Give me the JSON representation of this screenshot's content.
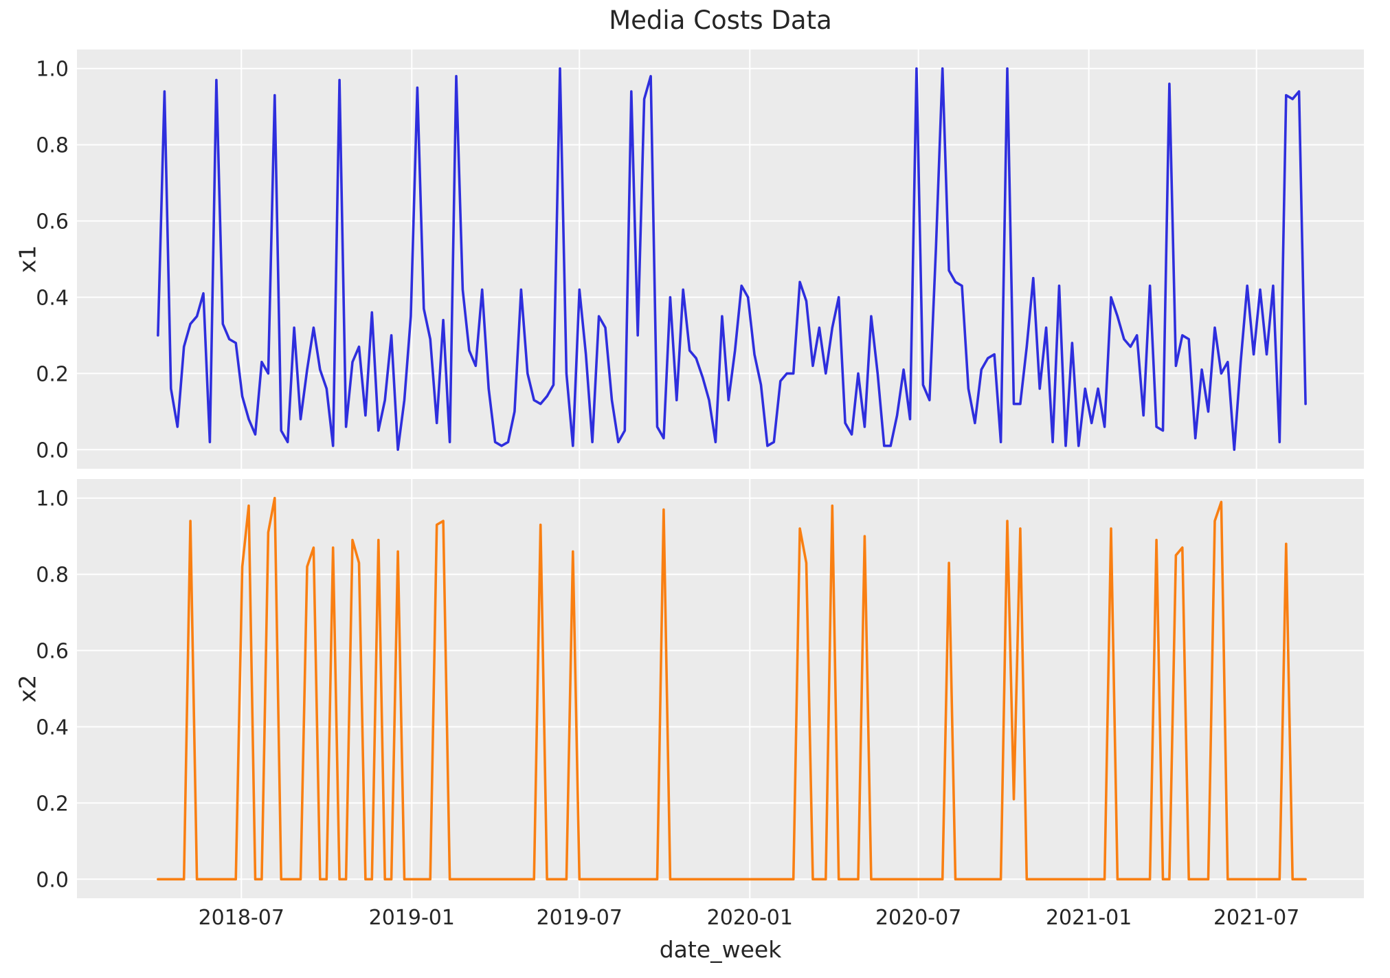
{
  "title": "Media Costs Data",
  "style": {
    "figure_bg": "#ffffff",
    "plot_bg": "#ebebeb",
    "grid_color": "#ffffff",
    "text_color": "#262626",
    "x1_color": "#2e2edd",
    "x2_color": "#f97f12"
  },
  "chart_data": {
    "type": "line",
    "title": "Media Costs Data",
    "xlabel": "date_week",
    "layout": "two-vertical-subplots-shared-x",
    "grid": true,
    "legend": "none",
    "x_start_date": "2018-04-02",
    "x_freq": "weekly",
    "n_points": 178,
    "ylim": [
      -0.05,
      1.05
    ],
    "yticks": [
      0.0,
      0.2,
      0.4,
      0.6,
      0.8,
      1.0
    ],
    "ytick_labels": [
      "0.0",
      "0.2",
      "0.4",
      "0.6",
      "0.8",
      "1.0"
    ],
    "x_ticks": [
      {
        "label": "2018-07",
        "week": 12.857
      },
      {
        "label": "2019-01",
        "week": 39.143
      },
      {
        "label": "2019-07",
        "week": 65.0
      },
      {
        "label": "2020-01",
        "week": 91.286
      },
      {
        "label": "2020-07",
        "week": 117.286
      },
      {
        "label": "2021-01",
        "week": 143.571
      },
      {
        "label": "2021-07",
        "week": 169.429
      }
    ],
    "series": [
      {
        "name": "x1",
        "color": "#2e2edd",
        "values": [
          0.3,
          0.94,
          0.16,
          0.06,
          0.27,
          0.33,
          0.35,
          0.41,
          0.02,
          0.97,
          0.33,
          0.29,
          0.28,
          0.14,
          0.08,
          0.04,
          0.23,
          0.2,
          0.93,
          0.05,
          0.02,
          0.32,
          0.08,
          0.21,
          0.32,
          0.21,
          0.16,
          0.01,
          0.97,
          0.06,
          0.23,
          0.27,
          0.09,
          0.36,
          0.05,
          0.13,
          0.3,
          0.0,
          0.13,
          0.35,
          0.95,
          0.37,
          0.29,
          0.07,
          0.34,
          0.02,
          0.98,
          0.42,
          0.26,
          0.22,
          0.42,
          0.16,
          0.02,
          0.01,
          0.02,
          0.1,
          0.42,
          0.2,
          0.13,
          0.12,
          0.14,
          0.17,
          1.0,
          0.2,
          0.01,
          0.42,
          0.25,
          0.02,
          0.35,
          0.32,
          0.13,
          0.02,
          0.05,
          0.94,
          0.3,
          0.92,
          0.98,
          0.06,
          0.03,
          0.4,
          0.13,
          0.42,
          0.26,
          0.24,
          0.19,
          0.13,
          0.02,
          0.35,
          0.13,
          0.26,
          0.43,
          0.4,
          0.25,
          0.17,
          0.01,
          0.02,
          0.18,
          0.2,
          0.2,
          0.44,
          0.39,
          0.22,
          0.32,
          0.2,
          0.32,
          0.4,
          0.07,
          0.04,
          0.2,
          0.06,
          0.35,
          0.2,
          0.01,
          0.01,
          0.09,
          0.21,
          0.08,
          1.0,
          0.17,
          0.13,
          0.53,
          1.0,
          0.47,
          0.44,
          0.43,
          0.16,
          0.07,
          0.21,
          0.24,
          0.25,
          0.02,
          1.0,
          0.12,
          0.12,
          0.27,
          0.45,
          0.16,
          0.32,
          0.02,
          0.43,
          0.01,
          0.28,
          0.01,
          0.16,
          0.07,
          0.16,
          0.06,
          0.4,
          0.35,
          0.29,
          0.27,
          0.3,
          0.09,
          0.43,
          0.06,
          0.05,
          0.96,
          0.22,
          0.3,
          0.29,
          0.03,
          0.21,
          0.1,
          0.32,
          0.2,
          0.23,
          0.0,
          0.23,
          0.43,
          0.25,
          0.42,
          0.25,
          0.43,
          0.02,
          0.93,
          0.92,
          0.94,
          0.12
        ]
      },
      {
        "name": "x2",
        "color": "#f97f12",
        "values": [
          0,
          0,
          0,
          0,
          0,
          0.94,
          0,
          0,
          0,
          0,
          0,
          0,
          0,
          0.82,
          0.98,
          0,
          0,
          0.91,
          1.0,
          0,
          0,
          0,
          0,
          0.82,
          0.87,
          0,
          0,
          0.87,
          0,
          0,
          0.89,
          0.83,
          0,
          0,
          0.89,
          0,
          0,
          0.86,
          0,
          0,
          0,
          0,
          0,
          0.93,
          0.94,
          0,
          0,
          0,
          0,
          0,
          0,
          0,
          0,
          0,
          0,
          0,
          0,
          0,
          0,
          0.93,
          0,
          0,
          0,
          0,
          0.86,
          0,
          0,
          0,
          0,
          0,
          0,
          0,
          0,
          0,
          0,
          0,
          0,
          0,
          0.97,
          0,
          0,
          0,
          0,
          0,
          0,
          0,
          0,
          0,
          0,
          0,
          0,
          0,
          0,
          0,
          0,
          0,
          0,
          0,
          0,
          0.92,
          0.83,
          0,
          0,
          0,
          0.98,
          0,
          0,
          0,
          0,
          0.9,
          0,
          0,
          0,
          0,
          0,
          0,
          0,
          0,
          0,
          0,
          0,
          0,
          0.83,
          0,
          0,
          0,
          0,
          0,
          0,
          0,
          0,
          0.94,
          0.21,
          0.92,
          0,
          0,
          0,
          0,
          0,
          0,
          0,
          0,
          0,
          0,
          0,
          0,
          0,
          0.92,
          0,
          0,
          0,
          0,
          0,
          0,
          0.89,
          0,
          0,
          0.85,
          0.87,
          0,
          0,
          0,
          0,
          0.94,
          0.99,
          0,
          0,
          0,
          0,
          0,
          0,
          0,
          0,
          0,
          0.88,
          0,
          0,
          0
        ]
      }
    ]
  }
}
